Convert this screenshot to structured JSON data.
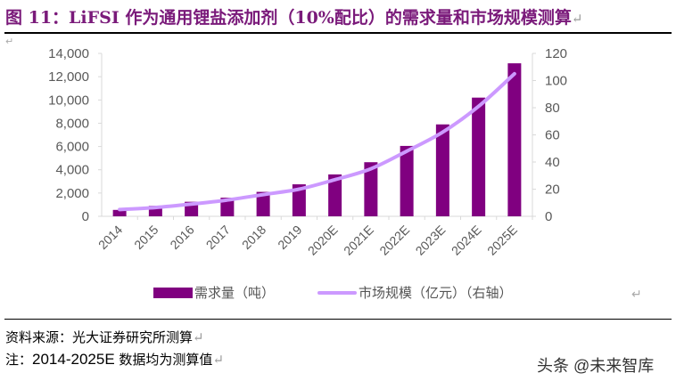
{
  "title": "图 11：LiFSI 作为通用锂盐添加剂（10%配比）的需求量和市场规模测算",
  "chart_data": {
    "type": "bar+line",
    "categories": [
      "2014",
      "2015",
      "2016",
      "2017",
      "2018",
      "2019",
      "2020E",
      "2021E",
      "2022E",
      "2023E",
      "2024E",
      "2025E"
    ],
    "series": [
      {
        "name": "需求量（吨）",
        "type": "bar",
        "axis": "left",
        "color": "#800080",
        "values": [
          550,
          900,
          1250,
          1600,
          2100,
          2750,
          3600,
          4650,
          6050,
          7900,
          10200,
          13150
        ]
      },
      {
        "name": "市场规模（亿元）（右轴）",
        "type": "line",
        "axis": "right",
        "color": "#cc99ff",
        "values": [
          5,
          6.5,
          9,
          12,
          16,
          20,
          27,
          35,
          48,
          62,
          81,
          105
        ]
      }
    ],
    "left_axis": {
      "min": 0,
      "max": 14000,
      "ticks": [
        "0",
        "2,000",
        "4,000",
        "6,000",
        "8,000",
        "10,000",
        "12,000",
        "14,000"
      ]
    },
    "right_axis": {
      "min": 0,
      "max": 120,
      "ticks": [
        "0",
        "20",
        "40",
        "60",
        "80",
        "100",
        "120"
      ]
    },
    "grid": false,
    "legend": "bottom"
  },
  "source": "资料来源：光大证券研究所测算",
  "note_prefix": "注：",
  "note_num": "2014-2025E",
  "note_suffix": " 数据均为测算值",
  "watermark": "头条 @未来智库"
}
